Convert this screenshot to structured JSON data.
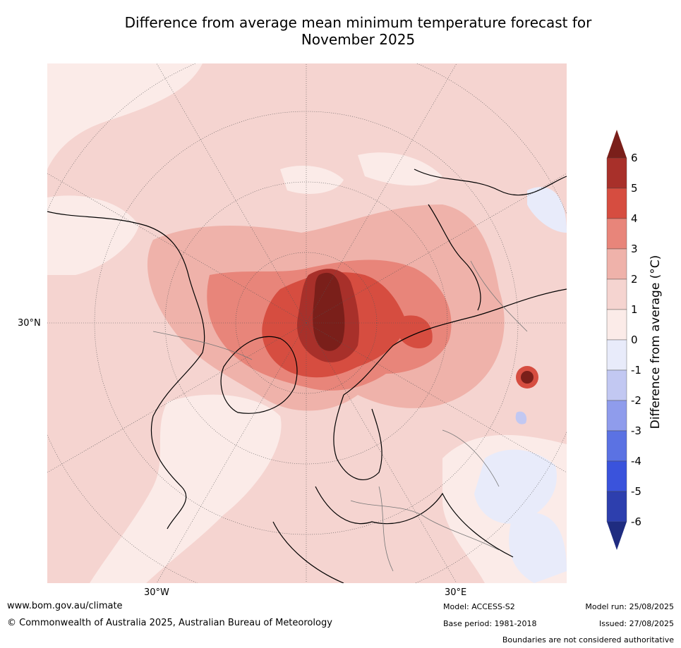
{
  "title_line1": "Difference from average mean minimum temperature forecast for",
  "title_line2": "November 2025",
  "axis_labels": {
    "lat_30n": "30°N",
    "lon_30w": "30°W",
    "lon_30e": "30°E"
  },
  "colorbar": {
    "label": "Difference from average (°C)",
    "ticks": [
      "6",
      "5",
      "4",
      "3",
      "2",
      "1",
      "0",
      "-1",
      "-2",
      "-3",
      "-4",
      "-5",
      "-6"
    ],
    "bins": [
      {
        "range": "> 6",
        "color": "#7a1f1a"
      },
      {
        "range": "5 to 6",
        "color": "#a8302a"
      },
      {
        "range": "4 to 5",
        "color": "#d64d40"
      },
      {
        "range": "3 to 4",
        "color": "#e8857a"
      },
      {
        "range": "2 to 3",
        "color": "#efb2aa"
      },
      {
        "range": "1 to 2",
        "color": "#f5d4d0"
      },
      {
        "range": "0 to 1",
        "color": "#fbebe8"
      },
      {
        "range": "-1 to 0",
        "color": "#e8ebfa"
      },
      {
        "range": "-2 to -1",
        "color": "#c2c8f2"
      },
      {
        "range": "-3 to -2",
        "color": "#8f9cec"
      },
      {
        "range": "-4 to -3",
        "color": "#5b72e3"
      },
      {
        "range": "-5 to -4",
        "color": "#3a53dc"
      },
      {
        "range": "-6 to -5",
        "color": "#2d3fae"
      },
      {
        "range": "< -6",
        "color": "#1f2c80"
      }
    ]
  },
  "footer": {
    "url": "www.bom.gov.au/climate",
    "copyright": "© Commonwealth of Australia 2025, Australian Bureau of Meteorology",
    "model": "Model: ACCESS-S2",
    "base_period": "Base period: 1981-2018",
    "model_run": "Model run: 25/08/2025",
    "issued": "Issued: 27/08/2025",
    "disclaimer": "Boundaries are not considered authoritative"
  }
}
